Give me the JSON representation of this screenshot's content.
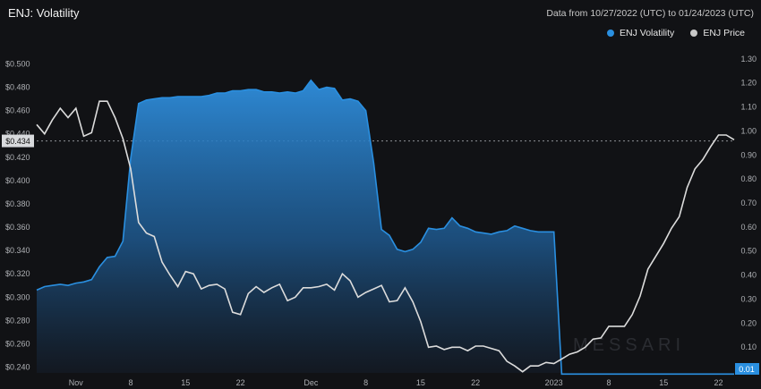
{
  "header": {
    "title": "ENJ: Volatility",
    "date_range": "Data from 10/27/2022 (UTC) to 01/24/2023 (UTC)"
  },
  "legend": [
    {
      "label": "ENJ Volatility",
      "color": "#2a8fe0"
    },
    {
      "label": "ENJ Price",
      "color": "#c8c8c8"
    }
  ],
  "watermark": "MESSARI",
  "colors": {
    "volatility": "#2a8fe0",
    "price": "#dcdcdc",
    "background": "#111215"
  },
  "chart_data": {
    "type": "area",
    "title": "ENJ: Volatility",
    "x_tick_labels": [
      "Nov",
      "8",
      "15",
      "22",
      "Dec",
      "8",
      "15",
      "22",
      "2023",
      "8",
      "15",
      "22"
    ],
    "left_axis": {
      "ticks": [
        "$0.240",
        "$0.260",
        "$0.280",
        "$0.300",
        "$0.320",
        "$0.340",
        "$0.360",
        "$0.380",
        "$0.400",
        "$0.420",
        "$0.440",
        "$0.460",
        "$0.480",
        "$0.500"
      ],
      "range": [
        0.235,
        0.505
      ]
    },
    "right_axis": {
      "ticks": [
        "0.10",
        "0.20",
        "0.30",
        "0.40",
        "0.50",
        "0.60",
        "0.70",
        "0.80",
        "0.90",
        "1.00",
        "1.10",
        "1.20",
        "1.30"
      ],
      "range": [
        0.0,
        1.3
      ]
    },
    "price_marker_label": "$0.434",
    "volatility_marker_label": "0.01",
    "x": [
      "10/27",
      "10/28",
      "10/29",
      "10/30",
      "10/31",
      "11/01",
      "11/02",
      "11/03",
      "11/04",
      "11/05",
      "11/06",
      "11/07",
      "11/08",
      "11/09",
      "11/10",
      "11/11",
      "11/12",
      "11/13",
      "11/14",
      "11/15",
      "11/16",
      "11/17",
      "11/18",
      "11/19",
      "11/20",
      "11/21",
      "11/22",
      "11/23",
      "11/24",
      "11/25",
      "11/26",
      "11/27",
      "11/28",
      "11/29",
      "11/30",
      "12/01",
      "12/02",
      "12/03",
      "12/04",
      "12/05",
      "12/06",
      "12/07",
      "12/08",
      "12/09",
      "12/10",
      "12/11",
      "12/12",
      "12/13",
      "12/14",
      "12/15",
      "12/16",
      "12/17",
      "12/18",
      "12/19",
      "12/20",
      "12/21",
      "12/22",
      "12/23",
      "12/24",
      "12/25",
      "12/26",
      "12/27",
      "12/28",
      "12/29",
      "12/30",
      "12/31",
      "01/01",
      "01/02",
      "01/03",
      "01/04",
      "01/05",
      "01/06",
      "01/07",
      "01/08",
      "01/09",
      "01/10",
      "01/11",
      "01/12",
      "01/13",
      "01/14",
      "01/15",
      "01/16",
      "01/17",
      "01/18",
      "01/19",
      "01/20",
      "01/21",
      "01/22",
      "01/23",
      "01/24"
    ],
    "series": [
      {
        "name": "ENJ Price",
        "axis": "left",
        "values": [
          0.448,
          0.44,
          0.452,
          0.462,
          0.454,
          0.462,
          0.438,
          0.441,
          0.468,
          0.468,
          0.454,
          0.436,
          0.41,
          0.364,
          0.355,
          0.352,
          0.33,
          0.319,
          0.309,
          0.322,
          0.32,
          0.307,
          0.31,
          0.311,
          0.307,
          0.287,
          0.285,
          0.303,
          0.309,
          0.304,
          0.308,
          0.311,
          0.297,
          0.3,
          0.308,
          0.308,
          0.309,
          0.311,
          0.306,
          0.32,
          0.314,
          0.3,
          0.304,
          0.307,
          0.31,
          0.296,
          0.297,
          0.308,
          0.296,
          0.279,
          0.257,
          0.258,
          0.255,
          0.257,
          0.257,
          0.254,
          0.258,
          0.258,
          0.256,
          0.254,
          0.245,
          0.241,
          0.236,
          0.241,
          0.241,
          0.244,
          0.243,
          0.247,
          0.251,
          0.253,
          0.257,
          0.264,
          0.265,
          0.275,
          0.275,
          0.275,
          0.285,
          0.301,
          0.324,
          0.335,
          0.346,
          0.359,
          0.369,
          0.394,
          0.41,
          0.418,
          0.429,
          0.439,
          0.439,
          0.435
        ]
      },
      {
        "name": "ENJ Volatility",
        "axis": "left",
        "values": [
          0.306,
          0.309,
          0.31,
          0.311,
          0.31,
          0.312,
          0.313,
          0.315,
          0.326,
          0.334,
          0.335,
          0.348,
          0.419,
          0.466,
          0.469,
          0.47,
          0.471,
          0.471,
          0.472,
          0.472,
          0.472,
          0.472,
          0.473,
          0.475,
          0.475,
          0.477,
          0.477,
          0.478,
          0.478,
          0.476,
          0.476,
          0.475,
          0.476,
          0.475,
          0.477,
          0.486,
          0.478,
          0.48,
          0.479,
          0.469,
          0.47,
          0.468,
          0.46,
          0.415,
          0.358,
          0.353,
          0.341,
          0.339,
          0.341,
          0.347,
          0.359,
          0.358,
          0.359,
          0.368,
          0.361,
          0.359,
          0.356,
          0.355,
          0.354,
          0.356,
          0.357,
          0.361,
          0.359,
          0.357,
          0.356,
          0.356,
          0.356,
          0.234,
          0.234,
          0.234,
          0.234,
          0.234,
          0.234,
          0.234,
          0.234,
          0.234,
          0.234,
          0.234,
          0.234,
          0.234,
          0.234,
          0.234,
          0.234,
          0.234,
          0.234,
          0.234,
          0.234,
          0.234,
          0.234,
          0.234
        ]
      }
    ],
    "legend_position": "top-right",
    "grid": false
  }
}
